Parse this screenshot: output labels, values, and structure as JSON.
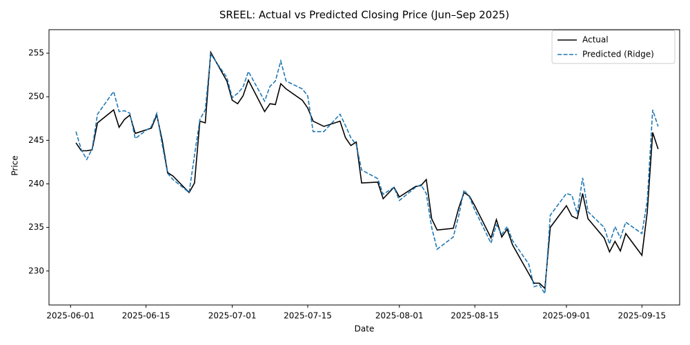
{
  "chart_data": {
    "type": "line",
    "title": "SREEL: Actual vs Predicted Closing Price (Jun–Sep 2025)",
    "x_label": "Date",
    "y_label": "Price",
    "x": [
      "2025-06-02",
      "2025-06-03",
      "2025-06-04",
      "2025-06-05",
      "2025-06-06",
      "2025-06-09",
      "2025-06-10",
      "2025-06-11",
      "2025-06-12",
      "2025-06-13",
      "2025-06-16",
      "2025-06-17",
      "2025-06-18",
      "2025-06-19",
      "2025-06-20",
      "2025-06-23",
      "2025-06-24",
      "2025-06-25",
      "2025-06-26",
      "2025-06-27",
      "2025-06-30",
      "2025-07-01",
      "2025-07-02",
      "2025-07-03",
      "2025-07-04",
      "2025-07-07",
      "2025-07-08",
      "2025-07-09",
      "2025-07-10",
      "2025-07-11",
      "2025-07-14",
      "2025-07-15",
      "2025-07-16",
      "2025-07-18",
      "2025-07-21",
      "2025-07-22",
      "2025-07-23",
      "2025-07-24",
      "2025-07-25",
      "2025-07-28",
      "2025-07-29",
      "2025-07-31",
      "2025-08-01",
      "2025-08-04",
      "2025-08-05",
      "2025-08-06",
      "2025-08-07",
      "2025-08-08",
      "2025-08-11",
      "2025-08-12",
      "2025-08-13",
      "2025-08-14",
      "2025-08-15",
      "2025-08-18",
      "2025-08-19",
      "2025-08-20",
      "2025-08-21",
      "2025-08-22",
      "2025-08-25",
      "2025-08-26",
      "2025-08-27",
      "2025-08-28",
      "2025-08-29",
      "2025-09-01",
      "2025-09-02",
      "2025-09-03",
      "2025-09-04",
      "2025-09-05",
      "2025-09-08",
      "2025-09-09",
      "2025-09-10",
      "2025-09-11",
      "2025-09-12",
      "2025-09-15",
      "2025-09-16",
      "2025-09-17",
      "2025-09-18"
    ],
    "series": [
      {
        "name": "Actual",
        "color": "#000000",
        "dash": false,
        "values": [
          244.7,
          243.8,
          243.8,
          243.9,
          247.0,
          248.5,
          246.5,
          247.4,
          247.9,
          245.8,
          246.4,
          247.9,
          245.0,
          241.3,
          240.9,
          239.0,
          240.1,
          247.2,
          247.0,
          255.1,
          251.8,
          249.6,
          249.2,
          250.1,
          251.9,
          248.3,
          249.2,
          249.1,
          251.5,
          250.9,
          249.6,
          248.7,
          247.2,
          246.6,
          247.2,
          245.3,
          244.4,
          244.8,
          240.1,
          240.2,
          238.3,
          239.6,
          238.5,
          239.7,
          239.8,
          240.5,
          236.0,
          234.7,
          234.9,
          237.2,
          239.0,
          238.6,
          237.5,
          233.8,
          235.9,
          233.9,
          234.8,
          233.0,
          229.7,
          228.6,
          228.6,
          228.0,
          235.0,
          237.5,
          236.3,
          236.0,
          238.9,
          236.0,
          233.8,
          232.2,
          233.4,
          232.3,
          234.3,
          231.8,
          236.8,
          245.9,
          244.0
        ]
      },
      {
        "name": "Predicted (Ridge)",
        "color": "#1f77b4",
        "dash": true,
        "values": [
          246.0,
          243.9,
          242.8,
          244.0,
          248.0,
          250.6,
          248.3,
          248.4,
          248.1,
          245.2,
          246.6,
          248.1,
          244.5,
          241.2,
          240.5,
          239.0,
          243.3,
          247.4,
          248.5,
          254.9,
          252.2,
          249.9,
          250.4,
          251.1,
          252.9,
          249.5,
          251.2,
          251.8,
          254.1,
          251.8,
          250.9,
          250.1,
          246.0,
          246.0,
          248.0,
          246.7,
          245.3,
          244.5,
          241.6,
          240.6,
          238.8,
          239.6,
          238.1,
          239.6,
          239.9,
          238.9,
          235.0,
          232.5,
          233.9,
          236.3,
          239.3,
          238.5,
          237.0,
          233.2,
          235.3,
          234.2,
          235.1,
          233.5,
          230.8,
          228.2,
          228.4,
          227.4,
          236.4,
          238.9,
          238.7,
          236.6,
          240.7,
          236.8,
          235.0,
          233.1,
          235.1,
          233.8,
          235.6,
          234.3,
          238.1,
          248.5,
          246.6
        ]
      }
    ],
    "xlim": [
      "2025-05-28",
      "2025-09-22"
    ],
    "xticks": [
      "2025-06-01",
      "2025-06-15",
      "2025-07-01",
      "2025-07-15",
      "2025-08-01",
      "2025-08-15",
      "2025-09-01",
      "2025-09-15"
    ],
    "ylim": [
      226.1,
      257.7
    ],
    "yticks": [
      230,
      235,
      240,
      245,
      250,
      255
    ],
    "grid": false,
    "legend": "upper right"
  }
}
